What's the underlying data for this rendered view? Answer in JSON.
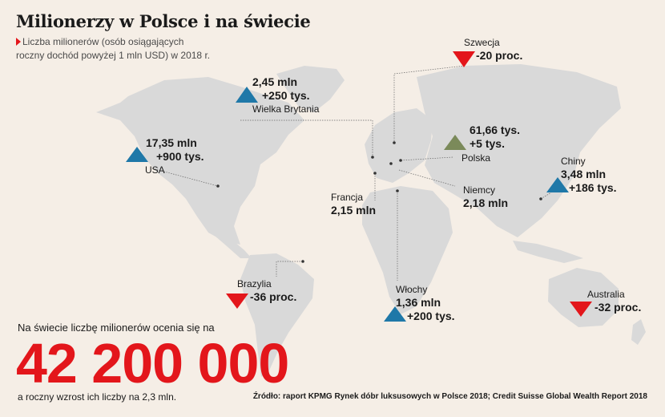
{
  "title": "Milionerzy w Polsce i na świecie",
  "subtitle_line1": "Liczba milionerów (osób osiągających",
  "subtitle_line2": "roczny dochód powyżej 1 mln USD) w 2018 r.",
  "countries": {
    "szwecja": {
      "name": "Szwecja",
      "value": "-20 proc.",
      "trend": "down"
    },
    "wielka_brytania": {
      "name": "Wielka Brytania",
      "value": "2,45 mln",
      "change": "+250 tys.",
      "trend": "up"
    },
    "usa": {
      "name": "USA",
      "value": "17,35 mln",
      "change": "+900 tys.",
      "trend": "up"
    },
    "polska": {
      "name": "Polska",
      "value": "61,66 tys.",
      "change": "+5 tys.",
      "trend": "up"
    },
    "chiny": {
      "name": "Chiny",
      "value": "3,48 mln",
      "change": "+186 tys.",
      "trend": "up"
    },
    "francja": {
      "name": "Francja",
      "value": "2,15 mln"
    },
    "niemcy": {
      "name": "Niemcy",
      "value": "2,18 mln"
    },
    "brazylia": {
      "name": "Brazylia",
      "value": "-36 proc.",
      "trend": "down"
    },
    "wlochy": {
      "name": "Włochy",
      "value": "1,36 mln",
      "change": "+200 tys.",
      "trend": "up"
    },
    "australia": {
      "name": "Australia",
      "value": "-32 proc.",
      "trend": "down"
    }
  },
  "summary": {
    "intro": "Na świecie liczbę milionerów ocenia się na",
    "big_number": "42 200 000",
    "outro": "a roczny wzrost ich liczby na 2,3 mln."
  },
  "source": "Źródło: raport KPMG Rynek dóbr luksusowych w Polsce 2018; Credit Suisse Global Wealth Report 2018",
  "colors": {
    "background": "#f5eee6",
    "land": "#d9d9d9",
    "down": "#e3161b",
    "up": "#1f78a8",
    "polska": "#7b8a5a",
    "accent": "#e3161b"
  }
}
